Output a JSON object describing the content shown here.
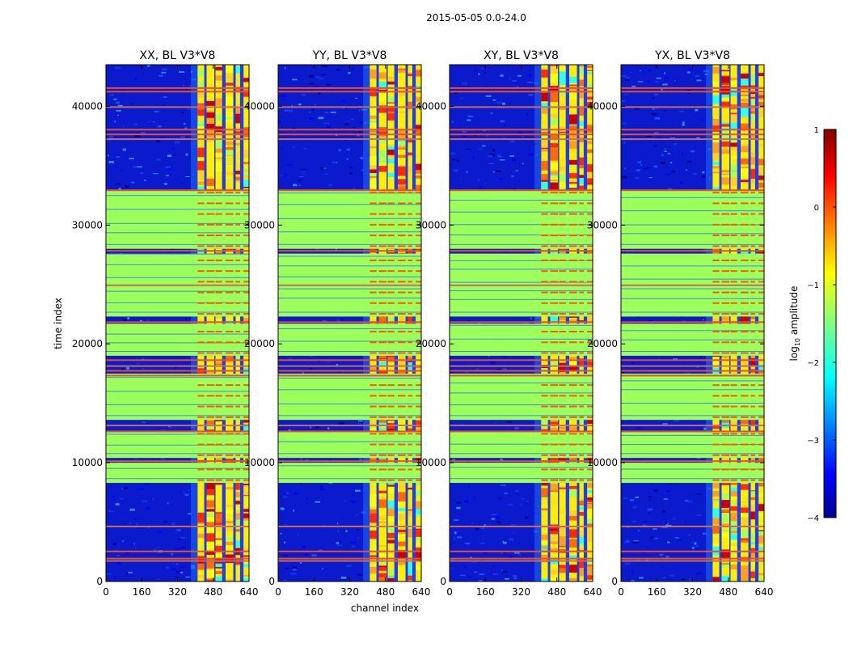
{
  "suptitle": "2015-05-05 0.0-24.0",
  "colors": {
    "background": "#9cff5a",
    "low": "#0a1acc",
    "flag_line": "#e8502a",
    "flag_line_alt": "#c86e58"
  },
  "chart_data": {
    "type": "heatmap",
    "xlabel": "channel index",
    "ylabel": "time index",
    "xlim": [
      0,
      640
    ],
    "ylim": [
      0,
      43500
    ],
    "xticks": [
      0,
      160,
      320,
      480,
      640
    ],
    "yticks": [
      0,
      10000,
      20000,
      30000,
      40000
    ],
    "panels": [
      {
        "title": "XX, BL V3*V8"
      },
      {
        "title": "YY, BL V3*V8"
      },
      {
        "title": "XY, BL V3*V8"
      },
      {
        "title": "YX, BL V3*V8"
      }
    ],
    "colorbar": {
      "label": "log10 amplitude",
      "label_base": "log",
      "label_sub": "10",
      "label_rest": " amplitude",
      "min": -4,
      "max": 1,
      "ticks": [
        1,
        0,
        -1,
        -2,
        -3,
        -4
      ]
    },
    "flat_bands": [
      [
        8300,
        10000
      ],
      [
        10400,
        12600
      ],
      [
        13600,
        17500
      ],
      [
        19000,
        21700
      ],
      [
        22300,
        27600
      ],
      [
        28000,
        32900
      ]
    ],
    "flag_rows": [
      1800,
      2000,
      2600,
      4700,
      10200,
      12700,
      13200,
      17400,
      17800,
      18200,
      18700,
      21900,
      25000,
      27900,
      33000,
      37300,
      37700,
      38100,
      40000,
      41300,
      41600
    ],
    "rfi_channels": [
      [
        410,
        440
      ],
      [
        450,
        485
      ],
      [
        490,
        520
      ],
      [
        535,
        570
      ],
      [
        580,
        600
      ],
      [
        615,
        640
      ]
    ]
  }
}
